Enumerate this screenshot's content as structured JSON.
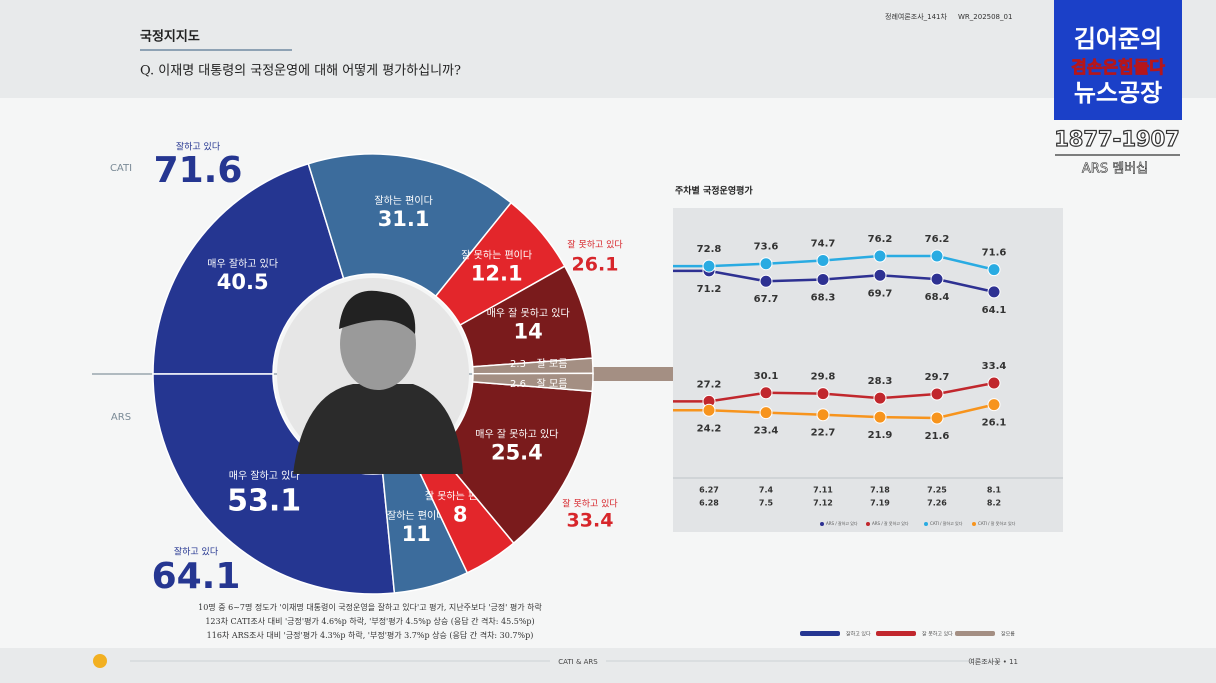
{
  "header": {
    "section": "국정지지도",
    "question": "Q. 이재명 대통령의 국정운영에 대해 어떻게 평가하십니까?",
    "survey": "정례여론조사_141차",
    "code": "WR_202508_01"
  },
  "logo": {
    "line1": "김어준의",
    "line2": "겸손은힘들다",
    "line3": "뉴스공장",
    "phone": "1877-1907",
    "note": "ARS 멤버십"
  },
  "chart_data": [
    {
      "type": "donut",
      "categories": [
        "매우 잘하고 있다",
        "잘하는 편이다",
        "잘 못하는 편이다",
        "매우 잘 못하고 있다",
        "잘 모름"
      ],
      "colors": [
        "#253691",
        "#3c6c9c",
        "#e3262b",
        "#7a1b1c",
        "#a48f83"
      ],
      "series": [
        {
          "name": "CATI",
          "values": [
            40.5,
            31.1,
            12.1,
            14.0,
            2.3
          ],
          "totals": [
            {
              "name": "잘하고 있다",
              "value": 71.6,
              "color": "#253691"
            },
            {
              "name": "잘 못하고 있다",
              "value": 26.1,
              "color": "#d7262b"
            }
          ]
        },
        {
          "name": "ARS",
          "values": [
            53.1,
            11.0,
            8.0,
            25.4,
            2.6
          ],
          "totals": [
            {
              "name": "잘하고 있다",
              "value": 64.1,
              "color": "#253691"
            },
            {
              "name": "잘 못하고 있다",
              "value": 33.4,
              "color": "#d7262b"
            }
          ]
        }
      ],
      "legend": [
        {
          "name": "잘하고 있다",
          "color": "#253691"
        },
        {
          "name": "잘 못하고 있다",
          "color": "#c1272d"
        },
        {
          "name": "잘모름",
          "color": "#a48f83"
        }
      ]
    },
    {
      "type": "line",
      "title": "주차별 국정운영평가",
      "categories": [
        [
          "6.27",
          "6.28"
        ],
        [
          "7.4",
          "7.5"
        ],
        [
          "7.11",
          "7.12"
        ],
        [
          "7.18",
          "7.19"
        ],
        [
          "7.25",
          "7.26"
        ],
        [
          "8.1",
          "8.2"
        ]
      ],
      "series": [
        {
          "name": "ARS / 잘하고 있다",
          "color": "#2e3192",
          "values": [
            71.2,
            67.7,
            68.3,
            69.7,
            68.4,
            64.1
          ]
        },
        {
          "name": "ARS / 잘 못하고 있다",
          "color": "#c1272d",
          "values": [
            27.2,
            30.1,
            29.8,
            28.3,
            29.7,
            33.4
          ]
        },
        {
          "name": "CATI / 잘하고 있다",
          "color": "#29abe2",
          "values": [
            72.8,
            73.6,
            74.7,
            76.2,
            76.2,
            71.6
          ]
        },
        {
          "name": "CATI / 잘 못하고 있다",
          "color": "#f7941d",
          "values": [
            24.2,
            23.4,
            22.7,
            21.9,
            21.6,
            26.1
          ]
        }
      ]
    }
  ],
  "footnotes": [
    "10명 중 6~7명 정도가 '이재명 대통령이 국정운영을 잘하고 있다'고 평가, 지난주보다 '긍정' 평가 하락",
    "123차 CATI조사 대비 '긍정'평가 4.6%p 하락, '부정'평가 4.5%p 상승 (응답 간 격차: 45.5%p)",
    "116차 ARS조사 대비 '긍정'평가 4.3%p 하락, '부정'평가 3.7%p 상승 (응답 간 격차: 30.7%p)"
  ],
  "footer": {
    "center": "CATI & ARS",
    "right": "여론조사꽃 • 11"
  }
}
